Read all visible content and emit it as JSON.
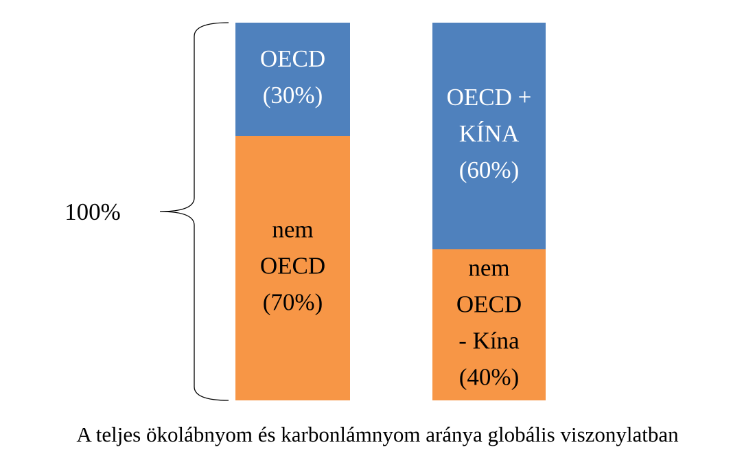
{
  "chart_data": {
    "type": "stacked-bar",
    "title": "A teljes ökolábnyom és karbonlámnyom aránya globális viszonylatban",
    "ylim": [
      0,
      100
    ],
    "bars": [
      {
        "segments": [
          {
            "value": 70,
            "color": "#f79646",
            "label_color": "#000000",
            "label_lines": [
              "nem",
              "OECD",
              "(70%)"
            ]
          },
          {
            "value": 30,
            "color": "#4f81bd",
            "label_color": "#ffffff",
            "label_lines": [
              "OECD",
              "(30%)"
            ]
          }
        ]
      },
      {
        "segments": [
          {
            "value": 40,
            "color": "#f79646",
            "label_color": "#000000",
            "label_lines": [
              "nem",
              "OECD",
              "- Kína",
              "(40%)"
            ]
          },
          {
            "value": 60,
            "color": "#4f81bd",
            "label_color": "#ffffff",
            "label_lines": [
              "OECD +",
              "KÍNA",
              "(60%)"
            ]
          }
        ]
      }
    ],
    "annotation": {
      "value": 100,
      "label": "100%"
    }
  }
}
